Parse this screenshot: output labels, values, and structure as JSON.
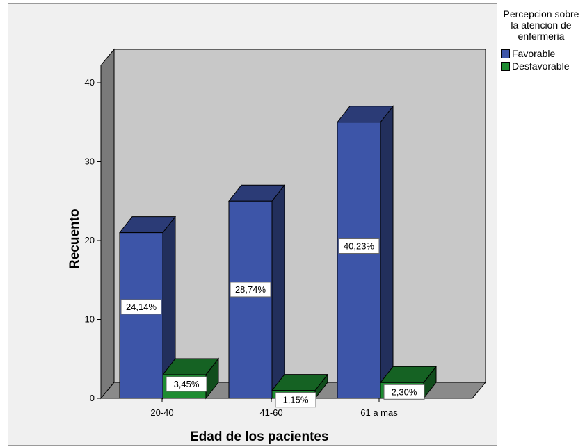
{
  "chart_data": {
    "type": "bar",
    "title": "",
    "xlabel": "Edad de los pacientes",
    "ylabel": "Recuento",
    "categories": [
      "20-40",
      "41-60",
      "61 a mas"
    ],
    "ylim": [
      0,
      43
    ],
    "yticks": [
      "0",
      "10",
      "20",
      "30",
      "40"
    ],
    "ytick_values": [
      0,
      10,
      20,
      30,
      40
    ],
    "series": [
      {
        "name": "Favorable",
        "color": "#3d55a8",
        "values": [
          21,
          25,
          35
        ],
        "labels": [
          "24,14%",
          "28,74%",
          "40,23%"
        ]
      },
      {
        "name": "Desfavorable",
        "color": "#1e8c32",
        "values": [
          3,
          1,
          2
        ],
        "labels": [
          "3,45%",
          "1,15%",
          "2,30%"
        ]
      }
    ],
    "legend": {
      "title": "Percepcion sobre la atencion de enfermeria",
      "position": "right"
    },
    "style": "3d-clustered"
  }
}
